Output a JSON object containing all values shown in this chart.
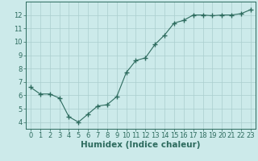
{
  "x": [
    0,
    1,
    2,
    3,
    4,
    5,
    6,
    7,
    8,
    9,
    10,
    11,
    12,
    13,
    14,
    15,
    16,
    17,
    18,
    19,
    20,
    21,
    22,
    23
  ],
  "y": [
    6.6,
    6.1,
    6.1,
    5.8,
    4.4,
    4.0,
    4.6,
    5.2,
    5.3,
    5.9,
    7.7,
    8.6,
    8.8,
    9.8,
    10.5,
    11.4,
    11.6,
    12.0,
    12.0,
    11.95,
    12.0,
    12.0,
    12.1,
    12.4
  ],
  "line_color": "#2d6b5e",
  "marker": "+",
  "marker_size": 4,
  "background_color": "#cceaea",
  "grid_color": "#aacece",
  "xlabel": "Humidex (Indice chaleur)",
  "xlim": [
    -0.5,
    23.5
  ],
  "ylim": [
    3.5,
    13.0
  ],
  "yticks": [
    4,
    5,
    6,
    7,
    8,
    9,
    10,
    11,
    12
  ],
  "xticks": [
    0,
    1,
    2,
    3,
    4,
    5,
    6,
    7,
    8,
    9,
    10,
    11,
    12,
    13,
    14,
    15,
    16,
    17,
    18,
    19,
    20,
    21,
    22,
    23
  ],
  "tick_fontsize": 6,
  "xlabel_fontsize": 7.5,
  "tick_color": "#2d6b5e",
  "spine_color": "#2d6b5e",
  "linewidth": 0.8,
  "marker_linewidth": 1.0
}
